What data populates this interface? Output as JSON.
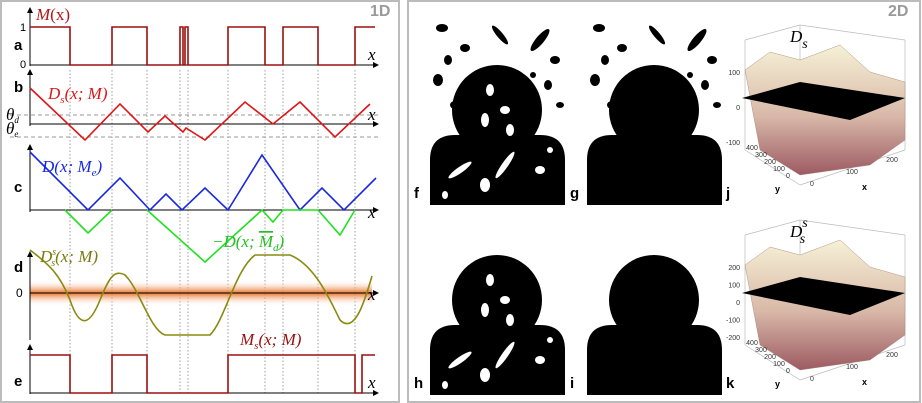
{
  "left": {
    "badge": "1D",
    "x_label": "x",
    "a": {
      "label": "a",
      "curve": {
        "main": "M",
        "rest": "(x)"
      },
      "tick_1": "1",
      "tick_0": "0"
    },
    "b": {
      "label": "b",
      "curve": {
        "main": "D",
        "sub": "s",
        "rest": "(x; M)"
      },
      "theta_d": {
        "main": "θ",
        "sub": "d"
      },
      "theta_e": {
        "main": "θ",
        "sub": "e"
      }
    },
    "c": {
      "label": "c",
      "curve": {
        "main": "D(x; M",
        "sub": "e",
        "close": ")"
      },
      "neg_curve": {
        "main": "−D(x; ",
        "bar": "M",
        "sub": "d",
        "close": ")"
      }
    },
    "d": {
      "label": "d",
      "tick_0": "0",
      "curve": {
        "main": "D",
        "sup": "s",
        "sub": "s",
        "rest": "(x; M)"
      }
    },
    "e": {
      "label": "e",
      "curve": {
        "main": "M",
        "sub": "s",
        "rest": "(x; M)"
      }
    }
  },
  "right": {
    "badge": "2D",
    "panels": [
      "f",
      "g",
      "h",
      "i",
      "j",
      "k"
    ],
    "plots": [
      {
        "title": {
          "main": "D",
          "sub": "s"
        },
        "zticks": [
          "100",
          "0",
          "-100"
        ],
        "yticks": [
          "400",
          "300",
          "200",
          "100",
          "0"
        ],
        "xticks": [
          "0",
          "100",
          "200"
        ],
        "y_label": "y",
        "x_label": "x"
      },
      {
        "title": {
          "main": "D",
          "sup": "s",
          "sub": "s"
        },
        "zticks": [
          "200",
          "100",
          "0",
          "-100",
          "-200"
        ],
        "yticks": [
          "400",
          "300",
          "200",
          "100",
          "0"
        ],
        "xticks": [
          "0",
          "100",
          "200"
        ],
        "y_label": "y",
        "x_label": "x"
      }
    ]
  }
}
